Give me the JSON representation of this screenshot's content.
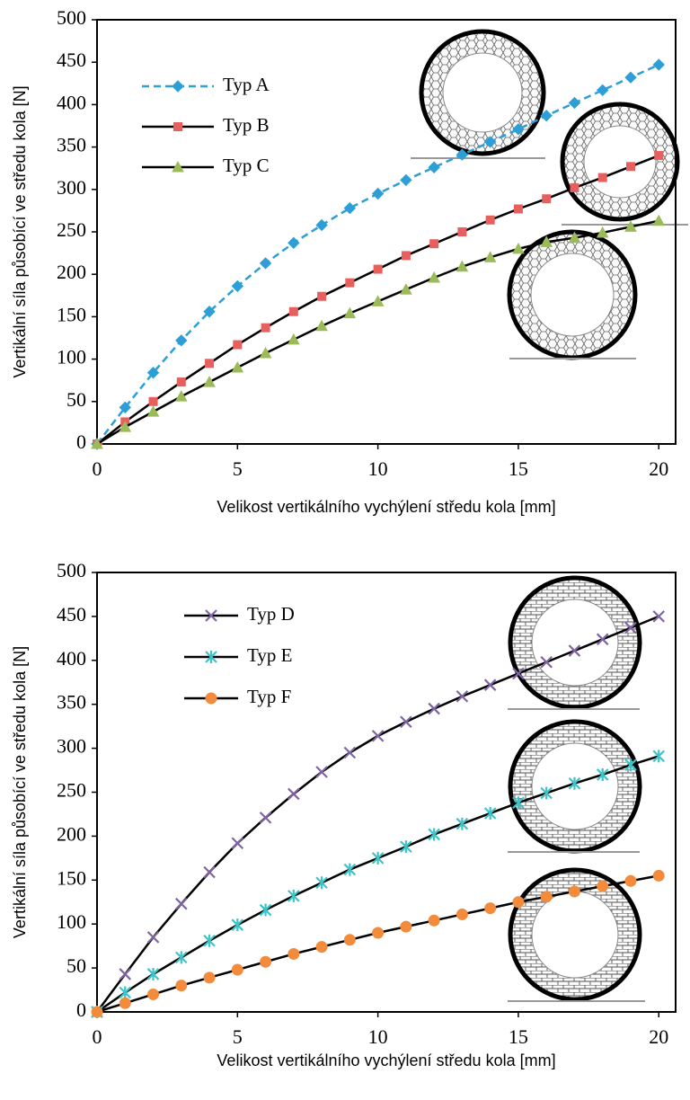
{
  "chart_data": [
    {
      "type": "line",
      "x_label": "Velikost vertikálního vychýlení středu kola [mm]",
      "y_label": "Vertikální síla působící ve středu kola [N]",
      "x": [
        0,
        1,
        2,
        3,
        4,
        5,
        6,
        7,
        8,
        9,
        10,
        11,
        12,
        13,
        14,
        15,
        16,
        17,
        18,
        19,
        20
      ],
      "xlim": [
        0,
        20.6
      ],
      "xticks": [
        0,
        5,
        10,
        15,
        20
      ],
      "ylim": [
        0,
        500
      ],
      "yticks": [
        0,
        50,
        100,
        150,
        200,
        250,
        300,
        350,
        400,
        450,
        500
      ],
      "series": [
        {
          "name": "Typ   A",
          "color": "#2e9fd6",
          "line_color": "#2e9fd6",
          "dashed": true,
          "marker": "diamond",
          "values": [
            0,
            43,
            84,
            122,
            156,
            186,
            213,
            237,
            258,
            278,
            295,
            311,
            326,
            341,
            356,
            371,
            387,
            402,
            417,
            432,
            447
          ]
        },
        {
          "name": "Typ   B",
          "color": "#e8605e",
          "line_color": "#000000",
          "dashed": false,
          "marker": "square",
          "values": [
            0,
            26,
            50,
            73,
            95,
            117,
            137,
            156,
            174,
            190,
            206,
            222,
            236,
            250,
            264,
            277,
            289,
            302,
            314,
            327,
            340
          ]
        },
        {
          "name": "Typ   C",
          "color": "#9bbb59",
          "line_color": "#000000",
          "dashed": false,
          "marker": "triangle",
          "values": [
            0,
            20,
            38,
            56,
            73,
            90,
            107,
            123,
            139,
            154,
            168,
            182,
            196,
            209,
            220,
            230,
            238,
            243,
            249,
            256,
            263
          ]
        }
      ]
    },
    {
      "type": "line",
      "x_label": "Velikost vertikálního vychýlení středu kola [mm]",
      "y_label": "Vertikální síla působící ve středu kola [N]",
      "x": [
        0,
        1,
        2,
        3,
        4,
        5,
        6,
        7,
        8,
        9,
        10,
        11,
        12,
        13,
        14,
        15,
        16,
        17,
        18,
        19,
        20
      ],
      "xlim": [
        0,
        20.6
      ],
      "xticks": [
        0,
        5,
        10,
        15,
        20
      ],
      "ylim": [
        0,
        500
      ],
      "yticks": [
        0,
        50,
        100,
        150,
        200,
        250,
        300,
        350,
        400,
        450,
        500
      ],
      "series": [
        {
          "name": "Typ   D",
          "color": "#8064a2",
          "line_color": "#000000",
          "dashed": false,
          "marker": "x",
          "values": [
            0,
            43,
            85,
            123,
            159,
            192,
            221,
            248,
            273,
            295,
            314,
            330,
            345,
            359,
            372,
            385,
            398,
            411,
            424,
            437,
            450
          ]
        },
        {
          "name": "Typ   E",
          "color": "#3cc4c8",
          "line_color": "#000000",
          "dashed": false,
          "marker": "star",
          "values": [
            0,
            22,
            43,
            62,
            81,
            99,
            116,
            132,
            147,
            162,
            175,
            188,
            202,
            214,
            226,
            238,
            249,
            260,
            270,
            281,
            291
          ]
        },
        {
          "name": "Typ   F",
          "color": "#f28b3c",
          "line_color": "#000000",
          "dashed": false,
          "marker": "circle",
          "values": [
            0,
            10,
            20,
            30,
            39,
            48,
            57,
            66,
            74,
            82,
            90,
            97,
            104,
            111,
            118,
            125,
            131,
            137,
            143,
            149,
            155
          ]
        }
      ]
    }
  ]
}
